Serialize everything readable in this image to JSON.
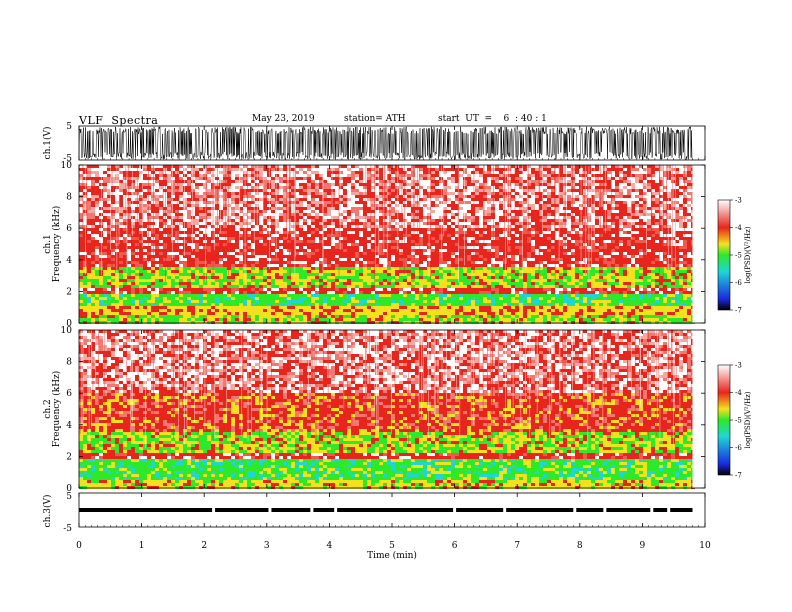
{
  "header": {
    "title": "VLF  Spectra",
    "date": "May 23, 2019",
    "station": "station= ATH",
    "start_ut": "start  UT  =    6  : 40 : 1"
  },
  "chart_data": [
    {
      "type": "line",
      "name": "ch1-waveform",
      "ylabel": "ch.1(V)",
      "ylim": [
        -5,
        5
      ],
      "yticks": [
        "5",
        "-5"
      ],
      "note_level": [
        -2.5,
        2.5
      ]
    },
    {
      "type": "heatmap",
      "name": "ch1-spectrogram",
      "ylabel": "ch.1\nFrequency  (kHz)",
      "ylabel_lines": [
        "ch.1",
        "Frequency  (kHz)"
      ],
      "ylim": [
        0,
        10
      ],
      "yticks": [
        "0",
        "2",
        "4",
        "6",
        "8",
        "10"
      ],
      "bands_khz": [
        {
          "from": 0,
          "to": 0.6,
          "level": "yellow-green"
        },
        {
          "from": 0.6,
          "to": 1.0,
          "level": "yellow-red"
        },
        {
          "from": 1.0,
          "to": 1.8,
          "level": "green"
        },
        {
          "from": 1.8,
          "to": 2.2,
          "level": "red"
        },
        {
          "from": 2.2,
          "to": 3.5,
          "level": "yellow-green"
        },
        {
          "from": 3.5,
          "to": 6.0,
          "level": "red"
        },
        {
          "from": 6.0,
          "to": 10.0,
          "level": "red-white"
        }
      ]
    },
    {
      "type": "heatmap",
      "name": "ch2-spectrogram",
      "ylabel_lines": [
        "ch.2",
        "Frequency  (kHz)"
      ],
      "ylim": [
        0,
        10
      ],
      "yticks": [
        "0",
        "2",
        "4",
        "6",
        "8",
        "10"
      ],
      "bands_khz": [
        {
          "from": 0,
          "to": 0.6,
          "level": "yellow"
        },
        {
          "from": 0.6,
          "to": 1.9,
          "level": "green"
        },
        {
          "from": 1.9,
          "to": 2.3,
          "level": "red"
        },
        {
          "from": 2.3,
          "to": 3.5,
          "level": "yellow-green"
        },
        {
          "from": 3.5,
          "to": 6.0,
          "level": "red-yellow"
        },
        {
          "from": 6.0,
          "to": 10.0,
          "level": "red-white"
        }
      ]
    },
    {
      "type": "line",
      "name": "ch3-waveform",
      "ylabel": "ch.3(V)",
      "ylim": [
        -5,
        5
      ],
      "yticks": [
        "5",
        "-5"
      ],
      "level": 0,
      "gaps_min": [
        2.15,
        3.05,
        3.72,
        4.1,
        6.0,
        6.8,
        7.92,
        8.4,
        9.15,
        9.42
      ]
    }
  ],
  "x_axis": {
    "label": "Time  (min)",
    "xlim": [
      0,
      10
    ],
    "ticks": [
      "0",
      "1",
      "2",
      "3",
      "4",
      "5",
      "6",
      "7",
      "8",
      "9",
      "10"
    ],
    "data_end_min": 9.8
  },
  "colorbar": {
    "label": "log(PSD)(V²/Hz)",
    "ticks": [
      "-3",
      "-4",
      "-5",
      "-6",
      "-7"
    ],
    "range": [
      -7,
      -3
    ]
  },
  "colors": {
    "white": "#ffffff",
    "red": "#e8251c",
    "yellow": "#f2e21e",
    "green": "#2ee82a",
    "cyan": "#1fd6d6",
    "blue": "#1a2ae0",
    "black": "#000000"
  }
}
